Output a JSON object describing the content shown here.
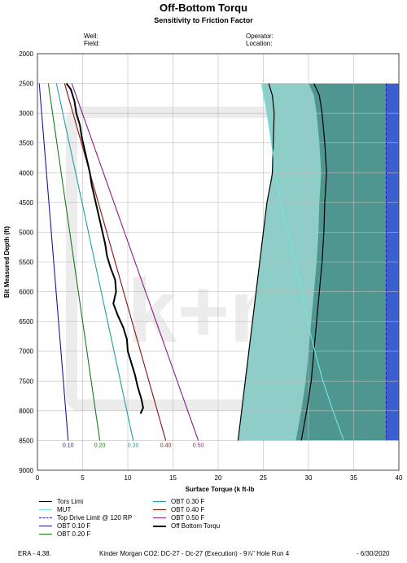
{
  "header": {
    "title": "Off-Bottom Torqu",
    "subtitle": "Sensitivity to Friction Factor",
    "well_label": "Well:",
    "field_label": "Field:",
    "operator_label": "Operator:",
    "location_label": "Location:"
  },
  "footer": {
    "left": "ERA - 4.38.",
    "center": "Kinder Morgan CO2: DC-27 - Dc-27 (Execution) - 9⅞\" Hole Run 4",
    "right": "- 6/30/2020"
  },
  "chart_data": {
    "type": "line",
    "title": "Off-Bottom Torqu",
    "subtitle": "Sensitivity to Friction Factor",
    "xlabel": "Surface Torque (k ft-lb",
    "ylabel": "Bit Measured Depth (ft)",
    "xlim": [
      0,
      40
    ],
    "ylim": [
      2000,
      9000
    ],
    "y_inverted": true,
    "x_ticks": [
      "0",
      "5",
      "10",
      "15",
      "20",
      "25",
      "30",
      "35",
      "40"
    ],
    "y_ticks": [
      "2000",
      "2500",
      "3000",
      "3500",
      "4000",
      "4500",
      "5000",
      "5500",
      "6000",
      "6500",
      "7000",
      "7500",
      "8000",
      "8500",
      "9000"
    ],
    "grid": true,
    "legend_position": "bottom",
    "watermark_text": "k+m",
    "colors": {
      "tors_limit": "#000000",
      "mut": "#6fe6e0",
      "top_drive": "#2222cc",
      "obt_010": "#1a1a9a",
      "obt_020": "#1a7a1a",
      "obt_030": "#1fa0a0",
      "obt_040": "#8b1010",
      "obt_050": "#8b1a8b",
      "off_bottom": "#000000",
      "fill_gray": "#c8c8c8",
      "fill_darkgray": "#9a9a9a",
      "fill_teal_light": "#8ecdc8",
      "fill_teal_dark": "#4f9690",
      "fill_blue": "#3b5fcf"
    },
    "series": [
      {
        "name": "OBT 0.10 F",
        "key": "obt_010",
        "depth": [
          2500,
          8500
        ],
        "torque": [
          0.2,
          3.4
        ],
        "end_label": "0.10"
      },
      {
        "name": "OBT 0.20 F",
        "key": "obt_020",
        "depth": [
          2500,
          8500
        ],
        "torque": [
          1.2,
          6.9
        ],
        "end_label": "0.20"
      },
      {
        "name": "OBT 0.30 F",
        "key": "obt_030",
        "depth": [
          2500,
          8500
        ],
        "torque": [
          2.1,
          10.6
        ],
        "end_label": "0.30"
      },
      {
        "name": "OBT 0.40 F",
        "key": "obt_040",
        "depth": [
          2500,
          8500
        ],
        "torque": [
          3.0,
          14.2
        ],
        "end_label": "0.40"
      },
      {
        "name": "OBT 0.50 F",
        "key": "obt_050",
        "depth": [
          2500,
          8500
        ],
        "torque": [
          3.8,
          17.8
        ],
        "end_label": "0.50"
      },
      {
        "name": "Tors Limi",
        "key": "tors_limit",
        "depth": [
          2500,
          2700,
          3000,
          3500,
          4000,
          4100,
          4500,
          5000,
          5500,
          6000,
          6500,
          7000,
          7500,
          8000,
          8500
        ],
        "torque": [
          25.6,
          26.0,
          26.2,
          26.1,
          26.0,
          25.9,
          25.4,
          25.0,
          24.6,
          24.2,
          23.8,
          23.4,
          23.0,
          22.6,
          22.2
        ]
      },
      {
        "name": "Tors Limi (upper)",
        "key": "tors_limit",
        "legend": false,
        "depth": [
          2500,
          2700,
          3000,
          3500,
          4000,
          4500,
          5000,
          5500,
          6000,
          6500,
          7000,
          7500,
          8000,
          8500
        ],
        "torque": [
          30.6,
          31.2,
          31.5,
          31.8,
          32.0,
          31.8,
          31.7,
          31.5,
          31.2,
          30.9,
          30.6,
          30.3,
          29.8,
          29.2
        ]
      },
      {
        "name": "MUT",
        "key": "mut",
        "depth": [
          2500,
          3000,
          3500,
          4000,
          4500,
          5000,
          5500,
          6000,
          6500,
          7000,
          7500,
          8000,
          8500
        ],
        "torque": [
          24.8,
          25.4,
          25.9,
          26.4,
          26.9,
          27.7,
          28.5,
          29.3,
          29.9,
          30.7,
          31.6,
          32.7,
          33.9
        ]
      },
      {
        "name": "Top Drive Limit @ 120 RP",
        "key": "top_drive",
        "dashed": true,
        "depth": [
          2500,
          8500
        ],
        "torque": [
          38.6,
          38.6
        ]
      },
      {
        "name": "Off Bottom Torqu",
        "key": "off_bottom",
        "depth": [
          2500,
          2600,
          2800,
          3000,
          3200,
          3400,
          3600,
          3800,
          4000,
          4200,
          4400,
          4600,
          4800,
          5000,
          5200,
          5400,
          5600,
          5800,
          6000,
          6200,
          6400,
          6600,
          6800,
          7000,
          7200,
          7400,
          7600,
          7800,
          7950,
          8050
        ],
        "torque": [
          3.2,
          3.7,
          4.1,
          4.3,
          4.7,
          4.9,
          5.2,
          5.5,
          5.8,
          6.0,
          6.3,
          6.6,
          6.9,
          7.2,
          7.5,
          7.7,
          8.1,
          8.6,
          8.7,
          8.4,
          8.9,
          9.5,
          9.9,
          10.0,
          10.4,
          10.8,
          11.1,
          11.5,
          11.7,
          11.4
        ]
      }
    ],
    "legend": [
      {
        "label": "Tors Limi",
        "key": "tors_limit",
        "col": 0
      },
      {
        "label": "MUT",
        "key": "mut",
        "col": 0
      },
      {
        "label": "Top Drive Limit @ 120 RP",
        "key": "top_drive",
        "col": 0,
        "dashed": true
      },
      {
        "label": "OBT 0.10 F",
        "key": "obt_010",
        "col": 0
      },
      {
        "label": "OBT 0.20 F",
        "key": "obt_020",
        "col": 0
      },
      {
        "label": "OBT 0.30 F",
        "key": "obt_030",
        "col": 1
      },
      {
        "label": "OBT 0.40 F",
        "key": "obt_040",
        "col": 1
      },
      {
        "label": "OBT 0.50 F",
        "key": "obt_050",
        "col": 1
      },
      {
        "label": "Off Bottom Torqu",
        "key": "off_bottom",
        "col": 1,
        "bold": true
      }
    ]
  }
}
